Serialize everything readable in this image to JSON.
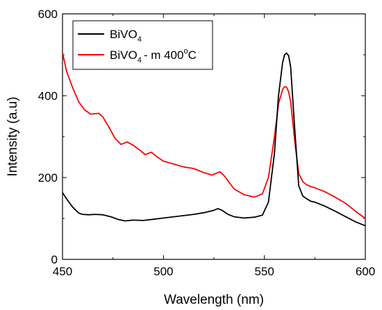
{
  "chart_data": {
    "type": "line",
    "xlabel": "Wavelength (nm)",
    "ylabel": "Intensity (a.u)",
    "xlim": [
      450,
      600
    ],
    "ylim": [
      0,
      600
    ],
    "xticks": [
      "450",
      "500",
      "550",
      "600"
    ],
    "yticks": [
      "0",
      "200",
      "400",
      "600"
    ],
    "grid": false,
    "legend_position": "top-left",
    "series": [
      {
        "name": "BiVO4",
        "legend": {
          "base": "BiVO",
          "sub": "4",
          "suffix": ""
        },
        "color": "#000000",
        "x": [
          450,
          452,
          455,
          458,
          460,
          463,
          466,
          470,
          474,
          478,
          481,
          485,
          490,
          495,
          500,
          505,
          510,
          515,
          520,
          525,
          527,
          529,
          532,
          535,
          540,
          545,
          549,
          552,
          555,
          557,
          559,
          560,
          561,
          562,
          563,
          565,
          567,
          569,
          571,
          573,
          575,
          580,
          585,
          590,
          595,
          600
        ],
        "y": [
          163,
          148,
          128,
          113,
          110,
          109,
          110,
          109,
          104,
          97,
          94,
          96,
          95,
          98,
          101,
          104,
          107,
          110,
          114,
          120,
          124,
          120,
          110,
          104,
          101,
          103,
          108,
          140,
          260,
          400,
          480,
          500,
          504,
          498,
          470,
          320,
          180,
          155,
          148,
          142,
          140,
          130,
          118,
          105,
          92,
          82
        ]
      },
      {
        "name": "BiVO4 - m 400°C",
        "legend": {
          "base": "BiVO",
          "sub": "4",
          "suffix": "- m 400",
          "sup": "o",
          "unit": "C"
        },
        "color": "#ff0000",
        "x": [
          450,
          452,
          455,
          458,
          461,
          464,
          466,
          468,
          470,
          473,
          476,
          479,
          482,
          485,
          488,
          491,
          494,
          497,
          500,
          505,
          510,
          515,
          520,
          524,
          526,
          528,
          530,
          535,
          540,
          545,
          549,
          552,
          555,
          557,
          559,
          560,
          561,
          562,
          563,
          565,
          567,
          569,
          571,
          573,
          575,
          580,
          585,
          590,
          595,
          600
        ],
        "y": [
          505,
          460,
          420,
          385,
          365,
          355,
          356,
          357,
          348,
          323,
          296,
          281,
          287,
          279,
          268,
          256,
          262,
          250,
          240,
          233,
          226,
          222,
          212,
          206,
          210,
          214,
          205,
          172,
          158,
          152,
          160,
          200,
          300,
          380,
          415,
          422,
          421,
          410,
          385,
          290,
          210,
          190,
          182,
          178,
          175,
          165,
          152,
          138,
          118,
          100
        ]
      }
    ]
  }
}
